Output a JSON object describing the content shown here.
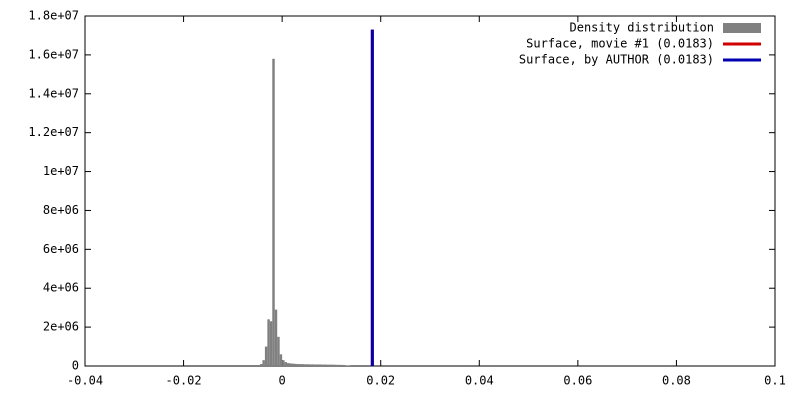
{
  "chart_data": {
    "type": "histogram",
    "series": [
      {
        "name": "Density distribution",
        "color": "#808080",
        "type": "histogram",
        "bins": [
          -0.005,
          -0.0045,
          -0.004,
          -0.0035,
          -0.003,
          -0.0025,
          -0.002,
          -0.0015,
          -0.001,
          -0.0005,
          0,
          0.0005,
          0.001,
          0.0015,
          0.002,
          0.0025,
          0.003,
          0.0035,
          0.004,
          0.0045,
          0.005,
          0.0055,
          0.006,
          0.0065,
          0.007,
          0.0075,
          0.008,
          0.0085,
          0.009,
          0.0095,
          0.01,
          0.0105,
          0.011,
          0.0115,
          0.012,
          0.0125,
          0.013,
          0.0135,
          0.014
        ],
        "values": [
          50000,
          100000,
          300000,
          1000000,
          2400000,
          2300000,
          15800000,
          2900000,
          1500000,
          600000,
          300000,
          200000,
          150000,
          130000,
          120000,
          110000,
          100000,
          100000,
          95000,
          90000,
          90000,
          85000,
          85000,
          80000,
          80000,
          80000,
          75000,
          75000,
          70000,
          70000,
          70000,
          65000,
          60000,
          60000,
          55000,
          50000,
          30000,
          10000
        ]
      },
      {
        "name": "Surface, movie #1 (0.0183)",
        "color": "#d00000",
        "type": "line",
        "x": [
          0.0183,
          0.0183
        ],
        "values": [
          0,
          17300000
        ]
      },
      {
        "name": "Surface, by AUTHOR (0.0183)",
        "color": "#0000b0",
        "type": "line",
        "x": [
          0.0183,
          0.0183
        ],
        "values": [
          0,
          17300000
        ]
      }
    ],
    "xlim": [
      -0.04,
      0.1
    ],
    "xticks": [
      -0.04,
      -0.02,
      0,
      0.02,
      0.04,
      0.06,
      0.08,
      0.1
    ],
    "ylim": [
      0,
      18000000
    ],
    "yticks": [
      0,
      {
        "value": 2000000,
        "label": "2e+06"
      },
      {
        "value": 4000000,
        "label": "4e+06"
      },
      {
        "value": 6000000,
        "label": "6e+06"
      },
      {
        "value": 8000000,
        "label": "8e+06"
      },
      {
        "value": 10000000,
        "label": "1e+07"
      },
      {
        "value": 12000000,
        "label": "1.2e+07"
      },
      {
        "value": 14000000,
        "label": "1.4e+07"
      },
      {
        "value": 16000000,
        "label": "1.6e+07"
      },
      {
        "value": 18000000,
        "label": "1.8e+07"
      }
    ],
    "legend": "top right"
  }
}
